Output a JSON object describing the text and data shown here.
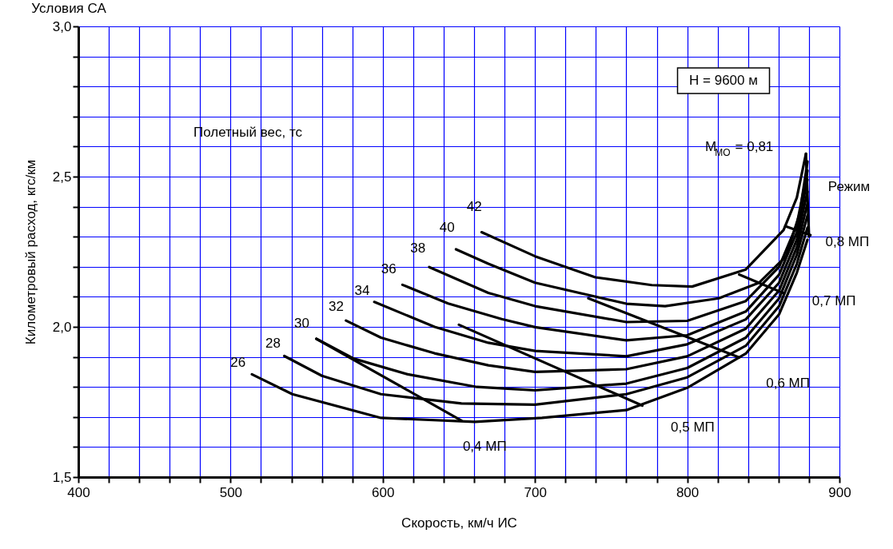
{
  "chart_data": {
    "type": "line",
    "title": "Условия СА",
    "xlabel": "Скорость, км/ч ИС",
    "ylabel": "Километровый расход, кгс/км",
    "xlim": [
      400,
      900
    ],
    "xticks": [
      400,
      {
        "value": 420,
        "label": null
      },
      {
        "value": 440,
        "label": null
      },
      {
        "value": 460,
        "label": null
      },
      {
        "value": 480,
        "label": null
      },
      500,
      {
        "value": 520,
        "label": null
      },
      {
        "value": 540,
        "label": null
      },
      {
        "value": 560,
        "label": null
      },
      {
        "value": 580,
        "label": null
      },
      600,
      {
        "value": 620,
        "label": null
      },
      {
        "value": 640,
        "label": null
      },
      {
        "value": 660,
        "label": null
      },
      {
        "value": 680,
        "label": null
      },
      700,
      {
        "value": 720,
        "label": null
      },
      {
        "value": 740,
        "label": null
      },
      {
        "value": 760,
        "label": null
      },
      {
        "value": 780,
        "label": null
      },
      800,
      {
        "value": 820,
        "label": null
      },
      {
        "value": 840,
        "label": null
      },
      {
        "value": 860,
        "label": null
      },
      {
        "value": 880,
        "label": null
      },
      900
    ],
    "ylim": [
      1.5,
      3.0
    ],
    "yticks": [
      {
        "value": 1.5,
        "label": "1,5"
      },
      {
        "value": 1.6,
        "label": null
      },
      {
        "value": 1.7,
        "label": null
      },
      {
        "value": 1.8,
        "label": null
      },
      {
        "value": 1.9,
        "label": null
      },
      {
        "value": 2.0,
        "label": "2,0"
      },
      {
        "value": 2.1,
        "label": null
      },
      {
        "value": 2.2,
        "label": null
      },
      {
        "value": 2.3,
        "label": null
      },
      {
        "value": 2.4,
        "label": null
      },
      {
        "value": 2.5,
        "label": "2,5"
      },
      {
        "value": 2.6,
        "label": null
      },
      {
        "value": 2.7,
        "label": null
      },
      {
        "value": 2.8,
        "label": null
      },
      {
        "value": 2.9,
        "label": null
      },
      {
        "value": 3.0,
        "label": "3,0"
      }
    ],
    "grid": true,
    "legend": false,
    "marker": "none",
    "line_style": "solid",
    "series": [
      {
        "color": "#000000",
        "x": [
          514,
          540.6,
          598.8,
          660.5,
          704.6,
          760,
          800,
          838.5,
          860.4,
          872,
          879
        ],
        "values": [
          1.842,
          1.776,
          1.697,
          1.684,
          1.697,
          1.723,
          1.797,
          1.911,
          2.042,
          2.18,
          2.29
        ]
      },
      {
        "color": "#000000",
        "x": [
          535.3,
          560,
          598.8,
          651.7,
          700,
          760,
          800,
          838.5,
          860.4,
          872,
          879
        ],
        "values": [
          1.903,
          1.837,
          1.776,
          1.745,
          1.741,
          1.776,
          1.832,
          1.937,
          2.069,
          2.21,
          2.33
        ]
      },
      {
        "color": "#000000",
        "x": [
          556.4,
          581.1,
          616.4,
          661.8,
          700,
          760,
          800,
          838.5,
          860.4,
          872,
          879
        ],
        "values": [
          1.96,
          1.894,
          1.842,
          1.8,
          1.789,
          1.811,
          1.863,
          1.964,
          2.095,
          2.24,
          2.37
        ]
      },
      {
        "color": "#000000",
        "x": [
          575.8,
          598.8,
          634,
          669.3,
          700,
          760,
          800,
          838.5,
          860.4,
          872,
          879
        ],
        "values": [
          2.021,
          1.964,
          1.912,
          1.872,
          1.85,
          1.859,
          1.902,
          1.994,
          2.121,
          2.265,
          2.41
        ]
      },
      {
        "color": "#000000",
        "x": [
          594.4,
          634,
          669.3,
          700,
          760,
          800,
          838.5,
          860.4,
          872,
          879
        ],
        "values": [
          2.083,
          2.0,
          1.947,
          1.92,
          1.902,
          1.942,
          2.025,
          2.147,
          2.29,
          2.45
        ]
      },
      {
        "color": "#000000",
        "x": [
          612.9,
          642.9,
          678.1,
          700,
          760,
          800,
          838.5,
          860.4,
          872,
          879
        ],
        "values": [
          2.14,
          2.078,
          2.026,
          1.999,
          1.955,
          1.972,
          2.051,
          2.174,
          2.315,
          2.49
        ]
      },
      {
        "color": "#000000",
        "x": [
          630.5,
          669.3,
          700,
          760,
          800,
          838.5,
          860.4,
          872,
          879
        ],
        "values": [
          2.199,
          2.113,
          2.069,
          2.016,
          2.02,
          2.086,
          2.2,
          2.34,
          2.52
        ]
      },
      {
        "color": "#000000",
        "x": [
          648.1,
          669.3,
          700,
          760,
          785.5,
          820.8,
          847.3,
          865,
          874,
          879
        ],
        "values": [
          2.258,
          2.21,
          2.147,
          2.077,
          2.069,
          2.095,
          2.147,
          2.235,
          2.38,
          2.55
        ]
      },
      {
        "color": "#000000",
        "x": [
          664.9,
          700,
          739.6,
          776.7,
          803.2,
          838.5,
          863.3,
          872,
          878
        ],
        "values": [
          2.315,
          2.235,
          2.165,
          2.139,
          2.134,
          2.191,
          2.322,
          2.43,
          2.576
        ]
      },
      {
        "color": "#000000",
        "x": [
          880,
          878
        ],
        "values": [
          2.3,
          2.576
        ]
      },
      {
        "color": "#000000",
        "x": [
          556.4,
          651.7
        ],
        "values": [
          1.96,
          1.688
        ]
      },
      {
        "color": "#000000",
        "x": [
          650,
          770.5
        ],
        "values": [
          2.007,
          1.738
        ]
      },
      {
        "color": "#000000",
        "x": [
          735,
          834.1
        ],
        "values": [
          2.095,
          1.898
        ]
      },
      {
        "color": "#000000",
        "x": [
          834.1,
          863.3
        ],
        "values": [
          2.174,
          2.112
        ]
      },
      {
        "color": "#000000",
        "x": [
          864.4,
          881
        ],
        "values": [
          2.335,
          2.305
        ]
      }
    ],
    "annotations": [
      "Полетный вес, тс",
      "H = 9600 м",
      "Режим",
      {
        "text": "26",
        "x": 514,
        "y": 1.842
      },
      {
        "text": "28",
        "x": 535.3,
        "y": 1.903
      },
      {
        "text": "30",
        "x": 556.4,
        "y": 1.96
      },
      {
        "text": "32",
        "x": 575.8,
        "y": 2.021
      },
      {
        "text": "34",
        "x": 594.4,
        "y": 2.083
      },
      {
        "text": "36",
        "x": 612.9,
        "y": 2.14
      },
      {
        "text": "38",
        "x": 630.5,
        "y": 2.199
      },
      {
        "text": "40",
        "x": 648.1,
        "y": 2.258
      },
      {
        "text": "42",
        "x": 664.9,
        "y": 2.315
      },
      {
        "text": "0,4 МП",
        "x": 651.7,
        "y": 1.688
      },
      {
        "text": "0,5 МП",
        "x": 770.5,
        "y": 1.738
      },
      {
        "text": "0,6 МП",
        "x": 834.1,
        "y": 1.898
      },
      {
        "text": "0,7 МП",
        "x": 863.3,
        "y": 2.112
      },
      {
        "text": "0,8 МП",
        "x": 881,
        "y": 2.305
      },
      {
        "text": "M$_{MO}$ = 0,81",
        "x": 878,
        "y": 2.576
      }
    ]
  }
}
